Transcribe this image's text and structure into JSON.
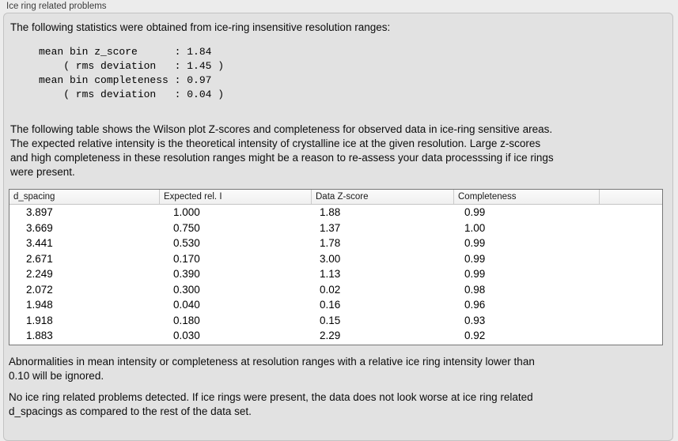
{
  "panel": {
    "title": "Ice ring related problems"
  },
  "stats": {
    "intro": "The following statistics were obtained from ice-ring insensitive resolution ranges:",
    "block": "mean bin z_score      : 1.84\n    ( rms deviation   : 1.45 )\nmean bin completeness : 0.97\n    ( rms deviation   : 0.04 )",
    "mean_bin_z_score": "1.84",
    "z_score_rms_deviation": "1.45",
    "mean_bin_completeness": "0.97",
    "completeness_rms_deviation": "0.04"
  },
  "description": "The following table shows the Wilson plot Z-scores and completeness for observed data in ice-ring sensitive areas.\nThe expected relative intensity is the theoretical intensity of crystalline ice at the given resolution. Large z-scores\nand high completeness in these resolution ranges might be a reason to re-assess your data processsing if ice rings\nwere present.",
  "table": {
    "columns": [
      "d_spacing",
      "Expected rel. I",
      "Data Z-score",
      "Completeness",
      ""
    ],
    "rows": [
      [
        "3.897",
        "1.000",
        "1.88",
        "0.99"
      ],
      [
        "3.669",
        "0.750",
        "1.37",
        "1.00"
      ],
      [
        "3.441",
        "0.530",
        "1.78",
        "0.99"
      ],
      [
        "2.671",
        "0.170",
        "3.00",
        "0.99"
      ],
      [
        "2.249",
        "0.390",
        "1.13",
        "0.99"
      ],
      [
        "2.072",
        "0.300",
        "0.02",
        "0.98"
      ],
      [
        "1.948",
        "0.040",
        "0.16",
        "0.96"
      ],
      [
        "1.918",
        "0.180",
        "0.15",
        "0.93"
      ],
      [
        "1.883",
        "0.030",
        "2.29",
        "0.92"
      ]
    ]
  },
  "notes": {
    "ignore_threshold": "Abnormalities in mean intensity or completeness at resolution ranges with a relative ice ring intensity lower than\n0.10 will be ignored.",
    "conclusion": "No ice ring related problems detected. If ice rings were present, the data does not look worse at ice ring related\nd_spacings as compared to the rest of the data set."
  },
  "colors": {
    "outer_bg": "#ececec",
    "panel_bg": "#e2e2e2",
    "panel_border": "#c3c3c3",
    "table_border": "#767676",
    "table_header_bg": "#f5f5f5",
    "table_header_separator": "#cbcbcb",
    "row_bg": "#ffffff"
  }
}
